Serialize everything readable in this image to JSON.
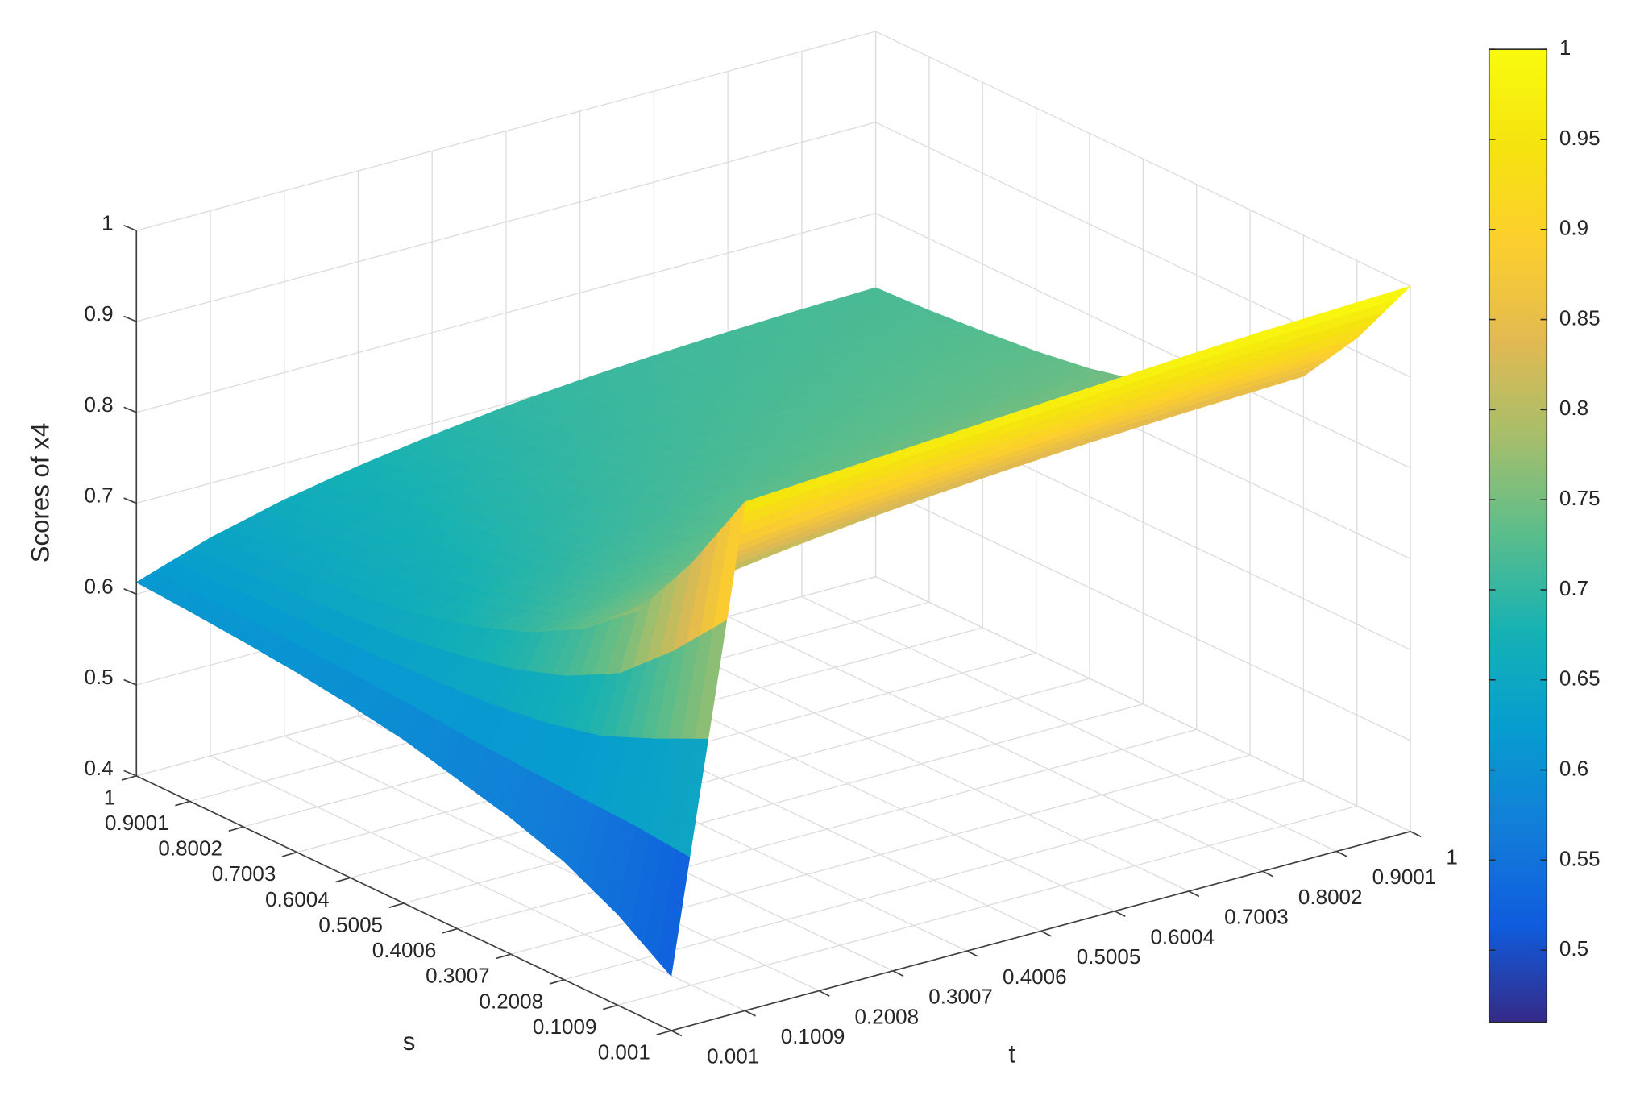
{
  "chart_data": {
    "type": "surface",
    "xlabel": "t",
    "ylabel": "s",
    "zlabel": "Scores of x4",
    "x": [
      0.001,
      0.1009,
      0.2008,
      0.3007,
      0.4006,
      0.5005,
      0.6004,
      0.7003,
      0.8002,
      0.9001,
      1
    ],
    "y": [
      0.001,
      0.1009,
      0.2008,
      0.3007,
      0.4006,
      0.5005,
      0.6004,
      0.7003,
      0.8002,
      0.9001,
      1
    ],
    "z": [
      [
        0.46,
        0.96,
        0.965,
        0.97,
        0.975,
        0.98,
        0.985,
        0.99,
        0.994,
        0.997,
        1.0
      ],
      [
        0.5,
        0.864,
        0.874,
        0.882,
        0.889,
        0.895,
        0.901,
        0.906,
        0.91,
        0.913,
        0.915
      ],
      [
        0.53,
        0.784,
        0.797,
        0.808,
        0.817,
        0.824,
        0.83,
        0.835,
        0.839,
        0.842,
        0.845
      ],
      [
        0.55,
        0.736,
        0.752,
        0.764,
        0.773,
        0.782,
        0.788,
        0.793,
        0.797,
        0.8,
        0.803
      ],
      [
        0.565,
        0.704,
        0.721,
        0.734,
        0.745,
        0.754,
        0.76,
        0.765,
        0.769,
        0.772,
        0.774
      ],
      [
        0.58,
        0.682,
        0.7,
        0.713,
        0.724,
        0.734,
        0.741,
        0.746,
        0.75,
        0.753,
        0.755
      ],
      [
        0.59,
        0.666,
        0.684,
        0.699,
        0.71,
        0.72,
        0.726,
        0.731,
        0.735,
        0.738,
        0.741
      ],
      [
        0.598,
        0.656,
        0.675,
        0.69,
        0.701,
        0.711,
        0.718,
        0.723,
        0.727,
        0.73,
        0.732
      ],
      [
        0.604,
        0.65,
        0.669,
        0.684,
        0.696,
        0.705,
        0.712,
        0.717,
        0.721,
        0.724,
        0.726
      ],
      [
        0.609,
        0.643,
        0.663,
        0.678,
        0.69,
        0.7,
        0.707,
        0.712,
        0.716,
        0.719,
        0.721
      ],
      [
        0.613,
        0.64,
        0.66,
        0.675,
        0.687,
        0.697,
        0.704,
        0.709,
        0.713,
        0.716,
        0.718
      ]
    ],
    "xlim": [
      0.001,
      1
    ],
    "ylim": [
      0.001,
      1
    ],
    "zlim": [
      0.4,
      1
    ],
    "xticks": [
      0.001,
      0.1009,
      0.2008,
      0.3007,
      0.4006,
      0.5005,
      0.6004,
      0.7003,
      0.8002,
      0.9001,
      1
    ],
    "yticks": [
      0.001,
      0.1009,
      0.2008,
      0.3007,
      0.4006,
      0.5005,
      0.6004,
      0.7003,
      0.8002,
      0.9001,
      1
    ],
    "zticks": [
      0.4,
      0.5,
      0.6,
      0.7,
      0.8,
      0.9,
      1
    ],
    "grid": true,
    "colormap": "parula",
    "clim": [
      0.46,
      1
    ],
    "colorbar_ticks": [
      0.5,
      0.55,
      0.6,
      0.65,
      0.7,
      0.75,
      0.8,
      0.85,
      0.9,
      0.95,
      1
    ]
  }
}
